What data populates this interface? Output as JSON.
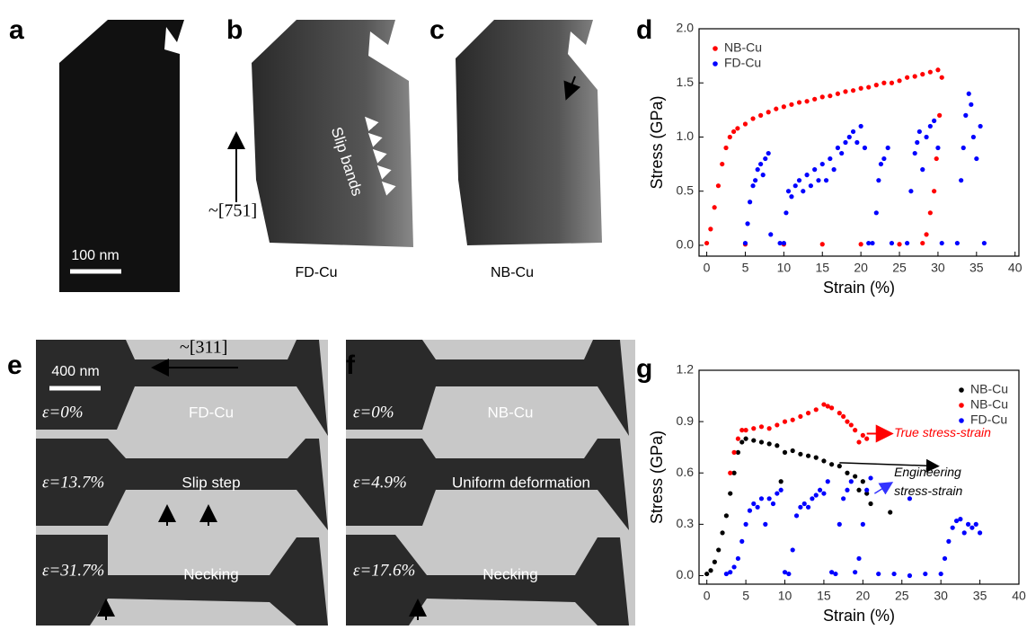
{
  "figure": {
    "labels": [
      "a",
      "b",
      "c",
      "d",
      "e",
      "f",
      "g"
    ],
    "scale_bar_a": "100 nm",
    "direction_a": "~[751]",
    "slip_bands": "Slip bands",
    "caption_b": "FD-Cu",
    "caption_c": "NB-Cu",
    "scale_bar_e": "400 nm",
    "direction_e": "~[311]",
    "e": [
      {
        "strain": "ε=0%",
        "note": "FD-Cu"
      },
      {
        "strain": "ε=13.7%",
        "note": "Slip step"
      },
      {
        "strain": "ε=31.7%",
        "note": "Necking"
      }
    ],
    "f": [
      {
        "strain": "ε=0%",
        "note": "NB-Cu"
      },
      {
        "strain": "ε=4.9%",
        "note": "Uniform deformation"
      },
      {
        "strain": "ε=17.6%",
        "note": "Necking"
      }
    ]
  },
  "chart_data": [
    {
      "type": "scatter",
      "xlabel": "Strain (%)",
      "ylabel": "Stress (GPa)",
      "xlim": [
        -1,
        40.5
      ],
      "ylim": [
        -0.1,
        2.0
      ],
      "xticks": [
        0,
        5,
        10,
        15,
        20,
        25,
        30,
        35,
        40
      ],
      "yticks": [
        {
          "value": 0,
          "label": "0.0"
        },
        0.5,
        {
          "value": 1,
          "label": "1.0"
        },
        1.5,
        {
          "value": 2,
          "label": "2.0"
        }
      ],
      "legend": "upper left",
      "series": [
        {
          "name": "NB-Cu",
          "color": "#ff0000",
          "x": [
            0,
            0.5,
            1,
            1.5,
            2,
            2.5,
            3,
            3.5,
            4,
            5,
            6,
            7,
            8,
            9,
            10,
            11,
            12,
            13,
            14,
            15,
            16,
            17,
            18,
            19,
            20,
            21,
            22,
            23,
            24,
            25,
            26,
            27,
            28,
            29,
            30,
            30.5,
            30.2,
            29.8,
            29.5,
            29,
            28.5,
            28,
            5,
            10,
            15,
            20,
            25
          ],
          "values": [
            0.02,
            0.15,
            0.35,
            0.55,
            0.75,
            0.9,
            1.0,
            1.05,
            1.08,
            1.12,
            1.17,
            1.2,
            1.23,
            1.26,
            1.28,
            1.3,
            1.32,
            1.33,
            1.35,
            1.37,
            1.38,
            1.4,
            1.42,
            1.43,
            1.45,
            1.46,
            1.48,
            1.5,
            1.5,
            1.52,
            1.55,
            1.56,
            1.58,
            1.6,
            1.62,
            1.55,
            1.2,
            0.8,
            0.5,
            0.3,
            0.1,
            0.02,
            0.01,
            0.01,
            0.01,
            0.01,
            0.01
          ]
        },
        {
          "name": "FD-Cu",
          "color": "#0000ff",
          "x": [
            5,
            5.3,
            5.6,
            6,
            6.3,
            6.6,
            7,
            7.3,
            7.6,
            8,
            8.3,
            9.5,
            10,
            10.3,
            10.6,
            11,
            11.5,
            12,
            12.5,
            13,
            13.5,
            14,
            14.5,
            15,
            15.5,
            16,
            16.5,
            17,
            17.5,
            18,
            18.5,
            19,
            19.5,
            20,
            20.5,
            21,
            21.5,
            22,
            22.3,
            22.6,
            23,
            23.5,
            24,
            26,
            26.5,
            27,
            27.3,
            27.6,
            28,
            28.5,
            29,
            29.5,
            30,
            30.5,
            32.5,
            33,
            33.3,
            33.6,
            34,
            34.3,
            34.6,
            35,
            35.5,
            36
          ],
          "values": [
            0.02,
            0.2,
            0.4,
            0.55,
            0.6,
            0.7,
            0.75,
            0.65,
            0.8,
            0.85,
            0.1,
            0.02,
            0.02,
            0.3,
            0.5,
            0.45,
            0.55,
            0.6,
            0.5,
            0.65,
            0.55,
            0.7,
            0.6,
            0.75,
            0.6,
            0.8,
            0.7,
            0.9,
            0.85,
            0.95,
            1.0,
            1.05,
            0.95,
            1.1,
            0.9,
            0.02,
            0.02,
            0.3,
            0.6,
            0.75,
            0.8,
            0.9,
            0.02,
            0.02,
            0.5,
            0.85,
            0.95,
            1.05,
            0.7,
            1.0,
            1.1,
            1.15,
            0.9,
            0.02,
            0.02,
            0.6,
            0.9,
            1.2,
            1.4,
            1.3,
            1.0,
            0.8,
            1.1,
            0.02
          ]
        }
      ]
    },
    {
      "type": "scatter",
      "xlabel": "Strain (%)",
      "ylabel": "Stress (GPa)",
      "xlim": [
        -1,
        40
      ],
      "ylim": [
        -0.05,
        1.2
      ],
      "xticks": [
        0,
        5,
        10,
        15,
        20,
        25,
        30,
        35,
        40
      ],
      "yticks": [
        {
          "value": 0,
          "label": "0.0"
        },
        0.3,
        0.6,
        0.9,
        1.2
      ],
      "legend": "upper right",
      "annotations": [
        "True stress-strain",
        "Engineering",
        "stress-strain"
      ],
      "series": [
        {
          "name": "NB-Cu",
          "color": "#000000",
          "x": [
            0,
            0.5,
            1,
            1.5,
            2,
            2.5,
            3,
            3.5,
            4,
            4.5,
            5,
            6,
            7,
            8,
            9,
            9.5,
            10,
            11,
            12,
            13,
            14,
            15,
            16,
            17,
            18,
            19,
            19.5,
            20,
            20.5,
            21,
            23.5
          ],
          "values": [
            0.01,
            0.03,
            0.08,
            0.15,
            0.25,
            0.35,
            0.48,
            0.6,
            0.72,
            0.78,
            0.8,
            0.79,
            0.78,
            0.77,
            0.76,
            0.55,
            0.72,
            0.73,
            0.71,
            0.7,
            0.69,
            0.67,
            0.65,
            0.64,
            0.6,
            0.58,
            0.5,
            0.55,
            0.48,
            0.42,
            0.37
          ]
        },
        {
          "name": "NB-Cu",
          "color": "#ff0000",
          "x": [
            3,
            3.5,
            4,
            4.5,
            5,
            6,
            7,
            8,
            9,
            10,
            11,
            12,
            13,
            14,
            15,
            15.5,
            16,
            17,
            17.5,
            18,
            18.5,
            19,
            19.5,
            20,
            20.5
          ],
          "values": [
            0.6,
            0.72,
            0.8,
            0.85,
            0.85,
            0.86,
            0.87,
            0.86,
            0.88,
            0.9,
            0.91,
            0.93,
            0.95,
            0.97,
            1.0,
            0.99,
            0.98,
            0.95,
            0.93,
            0.9,
            0.88,
            0.85,
            0.78,
            0.82,
            0.8
          ]
        },
        {
          "name": "FD-Cu",
          "color": "#0000ff",
          "x": [
            2.5,
            3,
            3.5,
            4,
            4.5,
            5,
            5.5,
            6,
            6.5,
            7,
            7.5,
            8,
            8.5,
            9,
            9.5,
            10,
            10.5,
            11,
            11.5,
            12,
            12.5,
            13,
            13.5,
            14,
            14.5,
            15,
            15.5,
            16,
            16.5,
            17,
            17.5,
            18,
            18.5,
            19,
            19.5,
            20,
            20.5,
            21,
            22,
            24,
            26,
            26,
            28,
            30,
            30.5,
            31,
            31.5,
            32,
            32.5,
            33,
            33.5,
            34,
            34.5,
            35
          ],
          "values": [
            0.01,
            0.02,
            0.05,
            0.1,
            0.2,
            0.3,
            0.38,
            0.42,
            0.4,
            0.45,
            0.3,
            0.45,
            0.42,
            0.48,
            0.5,
            0.02,
            0.01,
            0.15,
            0.35,
            0.4,
            0.42,
            0.4,
            0.45,
            0.47,
            0.5,
            0.48,
            0.55,
            0.02,
            0.01,
            0.3,
            0.45,
            0.5,
            0.55,
            0.02,
            0.1,
            0.3,
            0.5,
            0.57,
            0.01,
            0.01,
            0.45,
            0.0,
            0.01,
            0.01,
            0.1,
            0.2,
            0.28,
            0.32,
            0.33,
            0.25,
            0.3,
            0.28,
            0.3,
            0.25
          ]
        }
      ]
    }
  ]
}
